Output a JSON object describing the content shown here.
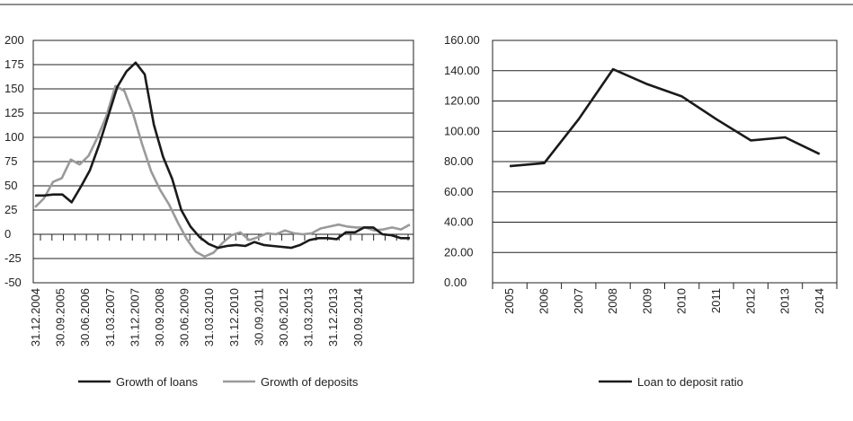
{
  "chart_data": [
    {
      "type": "line",
      "title": "",
      "xlabel": "",
      "ylabel": "",
      "ylim": [
        -50,
        200
      ],
      "yticks": [
        200,
        175,
        150,
        125,
        100,
        75,
        50,
        25,
        0,
        -25,
        -50
      ],
      "ytick_labels": [
        "200",
        "175",
        "150",
        "125",
        "100",
        "75",
        "50",
        "25",
        "0",
        "-25",
        "-50"
      ],
      "grid": true,
      "legend": "bottom",
      "x_tick_labels": [
        "31.12.2004",
        "30.09.2005",
        "30.06.2006",
        "31.03.2007",
        "31.12.2007",
        "30.09.2008",
        "30.06.2009",
        "31.03.2010",
        "31.12.2010",
        "30.09.2011",
        "30.06.2012",
        "31.03.2013",
        "31.12.2013",
        "30.09.2014"
      ],
      "series": [
        {
          "name": "Growth of loans",
          "color": "#1a1a1a",
          "values": [
            40,
            40,
            41,
            41,
            33,
            49,
            66,
            92,
            122,
            152,
            168,
            177,
            165,
            113,
            80,
            57,
            25,
            8,
            -3,
            -10,
            -14,
            -12,
            -11,
            -12,
            -8,
            -11,
            -12,
            -13,
            -14,
            -11,
            -6,
            -4,
            -4,
            -5,
            2,
            2,
            7,
            7,
            0,
            -1,
            -4,
            -4
          ]
        },
        {
          "name": "Growth of deposits",
          "color": "#9a9a9a",
          "values": [
            28,
            37,
            54,
            58,
            77,
            72,
            81,
            100,
            122,
            153,
            148,
            124,
            93,
            65,
            46,
            31,
            12,
            -5,
            -18,
            -23,
            -19,
            -9,
            -1,
            2,
            -6,
            -3,
            1,
            0,
            4,
            1,
            0,
            1,
            6,
            8,
            10,
            8,
            7,
            7,
            4,
            5,
            7,
            5,
            10
          ]
        }
      ]
    },
    {
      "type": "line",
      "title": "",
      "xlabel": "",
      "ylabel": "",
      "ylim": [
        0,
        160
      ],
      "yticks": [
        160,
        140,
        120,
        100,
        80,
        60,
        40,
        20,
        0
      ],
      "ytick_labels": [
        "160.00",
        "140.00",
        "120.00",
        "100.00",
        "80.00",
        "60.00",
        "40.00",
        "20.00",
        "0.00"
      ],
      "grid": true,
      "legend": "bottom",
      "categories": [
        "2005",
        "2006",
        "2007",
        "2008",
        "2009",
        "2010",
        "2011",
        "2012",
        "2013",
        "2014"
      ],
      "series": [
        {
          "name": "Loan to deposit ratio",
          "color": "#1a1a1a",
          "values": [
            77,
            79,
            108,
            141,
            131,
            123,
            108,
            94,
            96,
            85
          ]
        }
      ]
    }
  ]
}
